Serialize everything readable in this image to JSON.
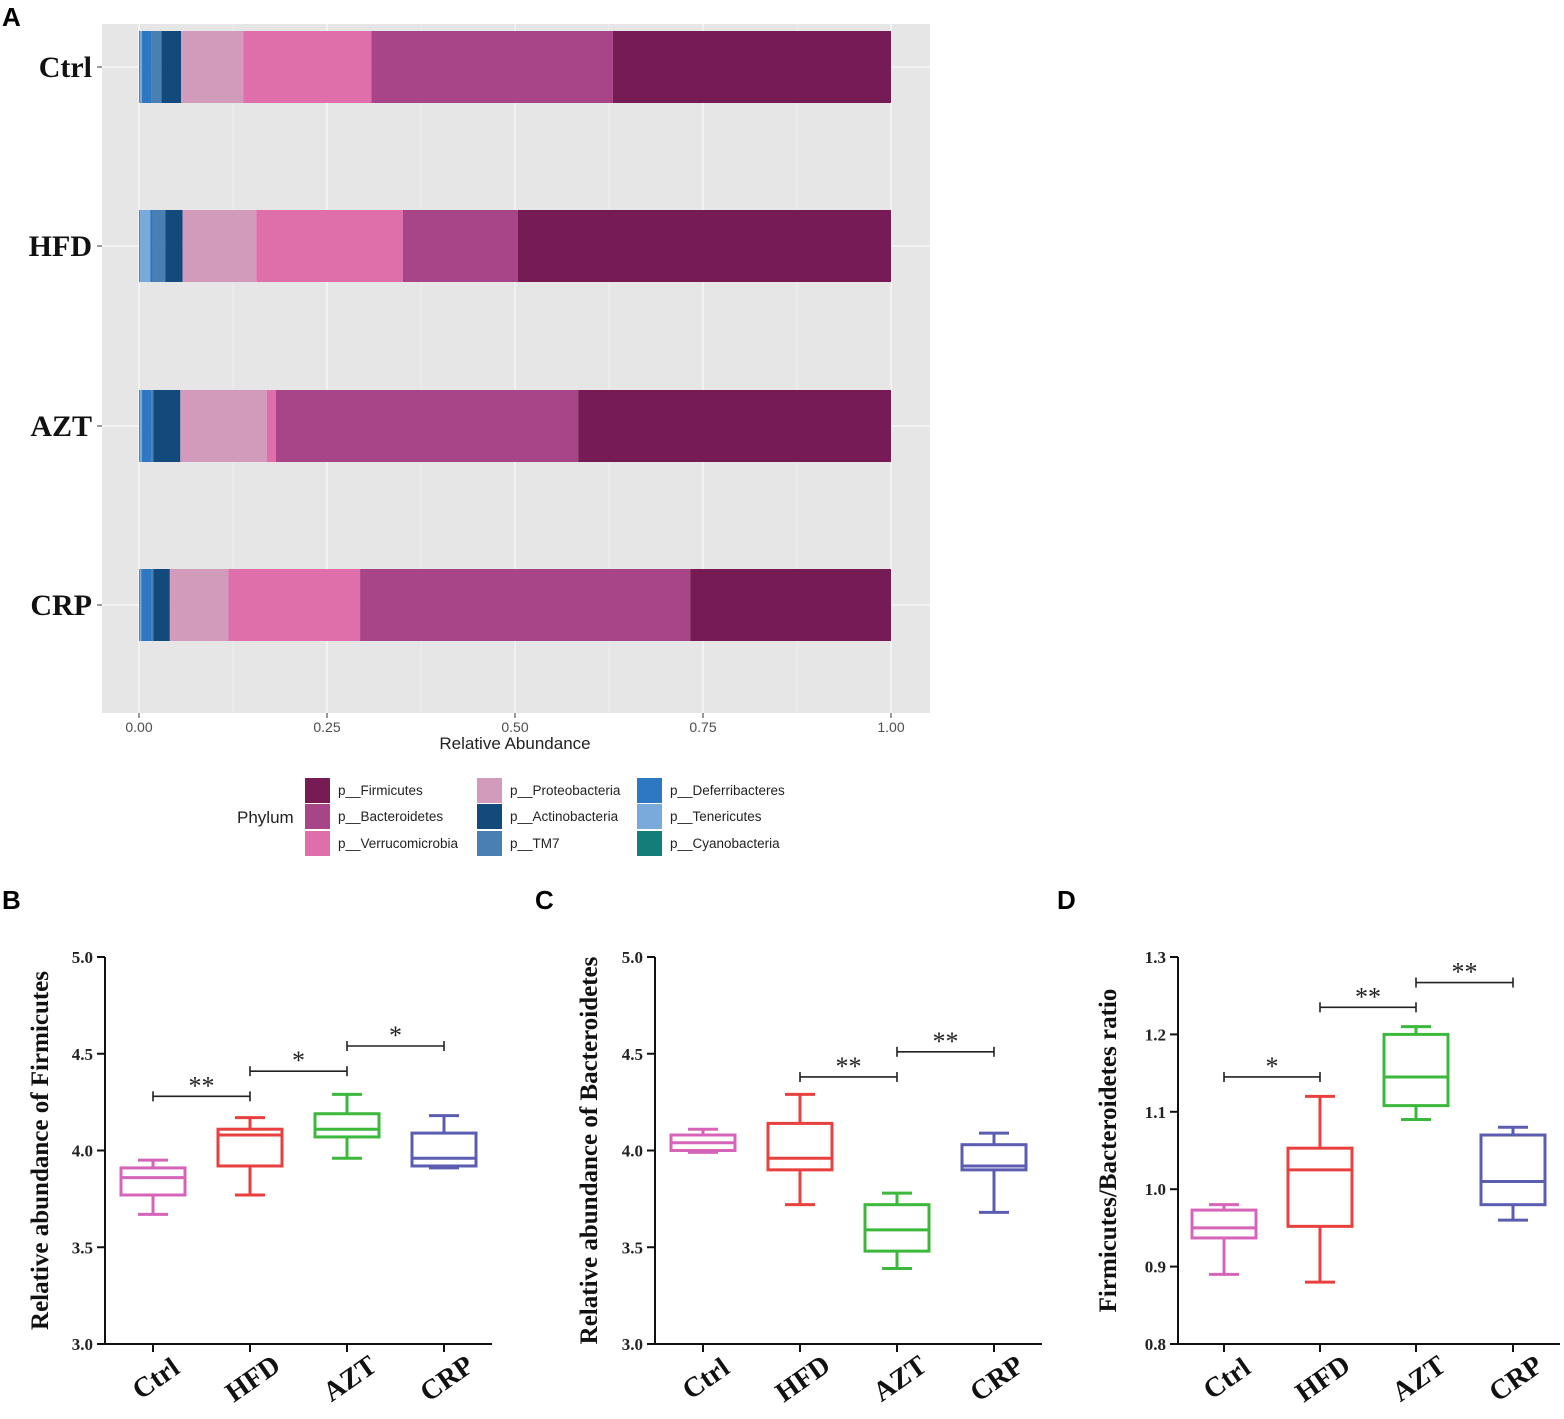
{
  "panels": {
    "a": "A",
    "b": "B",
    "c": "C",
    "d": "D"
  },
  "chart_data": [
    {
      "type": "stacked-bar-horizontal",
      "panel": "A",
      "xlabel": "Relative Abundance",
      "xlim": [
        0,
        1
      ],
      "xticks": [
        0.0,
        0.25,
        0.5,
        0.75,
        1.0
      ],
      "xtick_labels": [
        "0.00",
        "0.25",
        "0.50",
        "0.75",
        "1.00"
      ],
      "categories": [
        "Ctrl",
        "HFD",
        "AZT",
        "CRP"
      ],
      "series": [
        {
          "name": "p__Cyanobacteria",
          "color": "#137d7a",
          "values": [
            0.001,
            0.001,
            0.001,
            0.001
          ]
        },
        {
          "name": "p__Tenericutes",
          "color": "#7aaadc",
          "values": [
            0.003,
            0.014,
            0.003,
            0.002
          ]
        },
        {
          "name": "p__Deferribacteres",
          "color": "#2e78c2",
          "values": [
            0.013,
            0.003,
            0.013,
            0.013
          ]
        },
        {
          "name": "p__TM7",
          "color": "#4a7fb3",
          "values": [
            0.013,
            0.017,
            0.002,
            0.003
          ]
        },
        {
          "name": "p__Actinobacteria",
          "color": "#134a7c",
          "values": [
            0.026,
            0.023,
            0.036,
            0.022
          ]
        },
        {
          "name": "p__Proteobacteria",
          "color": "#d29bbb",
          "values": [
            0.083,
            0.098,
            0.115,
            0.078
          ]
        },
        {
          "name": "p__Verrucomicrobia",
          "color": "#de6fab",
          "values": [
            0.17,
            0.195,
            0.012,
            0.175
          ]
        },
        {
          "name": "p__Bacteroidetes",
          "color": "#a84589",
          "values": [
            0.321,
            0.153,
            0.402,
            0.439
          ]
        },
        {
          "name": "p__Firmicutes",
          "color": "#761b54",
          "values": [
            0.37,
            0.496,
            0.416,
            0.267
          ]
        }
      ],
      "legend": {
        "title": "Phylum",
        "entries": [
          [
            "p__Firmicutes",
            "p__Bacteroidetes",
            "p__Verrucomicrobia"
          ],
          [
            "p__Proteobacteria",
            "p__Actinobacteria",
            "p__TM7"
          ],
          [
            "p__Deferribacteres",
            "p__Tenericutes",
            "p__Cyanobacteria"
          ]
        ]
      }
    },
    {
      "type": "box",
      "panel": "B",
      "ylabel": "Relative abundance of Firmicutes",
      "ylim": [
        3.0,
        5.0
      ],
      "yticks": [
        "3.0",
        "3.5",
        "4.0",
        "4.5",
        "5.0"
      ],
      "categories": [
        "Ctrl",
        "HFD",
        "AZT",
        "CRP"
      ],
      "colors": [
        "#d665b9",
        "#e8403e",
        "#3cb83c",
        "#5b5db0"
      ],
      "boxes": [
        {
          "min": 3.67,
          "q1": 3.77,
          "median": 3.86,
          "q3": 3.91,
          "max": 3.95
        },
        {
          "min": 3.77,
          "q1": 3.92,
          "median": 4.08,
          "q3": 4.11,
          "max": 4.17
        },
        {
          "min": 3.96,
          "q1": 4.07,
          "median": 4.11,
          "q3": 4.19,
          "max": 4.29
        },
        {
          "min": 3.91,
          "q1": 3.92,
          "median": 3.96,
          "q3": 4.09,
          "max": 4.18
        }
      ],
      "significance": [
        {
          "from": 0,
          "to": 1,
          "y": 4.28,
          "label": "**"
        },
        {
          "from": 1,
          "to": 2,
          "y": 4.41,
          "label": "*"
        },
        {
          "from": 2,
          "to": 3,
          "y": 4.54,
          "label": "*"
        }
      ]
    },
    {
      "type": "box",
      "panel": "C",
      "ylabel": "Relative abundance of Bacteroidetes",
      "ylim": [
        3.0,
        5.0
      ],
      "yticks": [
        "3.0",
        "3.5",
        "4.0",
        "4.5",
        "5.0"
      ],
      "categories": [
        "Ctrl",
        "HFD",
        "AZT",
        "CRP"
      ],
      "colors": [
        "#d665b9",
        "#e8403e",
        "#3cb83c",
        "#5b5db0"
      ],
      "boxes": [
        {
          "min": 3.99,
          "q1": 4.0,
          "median": 4.04,
          "q3": 4.08,
          "max": 4.11
        },
        {
          "min": 3.72,
          "q1": 3.9,
          "median": 3.96,
          "q3": 4.14,
          "max": 4.29
        },
        {
          "min": 3.39,
          "q1": 3.48,
          "median": 3.59,
          "q3": 3.72,
          "max": 3.78
        },
        {
          "min": 3.68,
          "q1": 3.9,
          "median": 3.92,
          "q3": 4.03,
          "max": 4.09
        }
      ],
      "significance": [
        {
          "from": 1,
          "to": 2,
          "y": 4.38,
          "label": "**"
        },
        {
          "from": 2,
          "to": 3,
          "y": 4.51,
          "label": "**"
        }
      ]
    },
    {
      "type": "box",
      "panel": "D",
      "ylabel": "Firmicutes/Bacteroidetes ratio",
      "ylim": [
        0.8,
        1.3
      ],
      "yticks": [
        "0.8",
        "0.9",
        "1.0",
        "1.1",
        "1.2",
        "1.3"
      ],
      "categories": [
        "Ctrl",
        "HFD",
        "AZT",
        "CRP"
      ],
      "colors": [
        "#d665b9",
        "#e8403e",
        "#3cb83c",
        "#5b5db0"
      ],
      "boxes": [
        {
          "min": 0.89,
          "q1": 0.937,
          "median": 0.95,
          "q3": 0.973,
          "max": 0.98
        },
        {
          "min": 0.88,
          "q1": 0.952,
          "median": 1.025,
          "q3": 1.053,
          "max": 1.12
        },
        {
          "min": 1.09,
          "q1": 1.108,
          "median": 1.145,
          "q3": 1.2,
          "max": 1.21
        },
        {
          "min": 0.96,
          "q1": 0.98,
          "median": 1.01,
          "q3": 1.07,
          "max": 1.08
        }
      ],
      "significance": [
        {
          "from": 0,
          "to": 1,
          "y": 1.145,
          "label": "*"
        },
        {
          "from": 1,
          "to": 2,
          "y": 1.235,
          "label": "**"
        },
        {
          "from": 2,
          "to": 3,
          "y": 1.267,
          "label": "**"
        }
      ]
    }
  ]
}
